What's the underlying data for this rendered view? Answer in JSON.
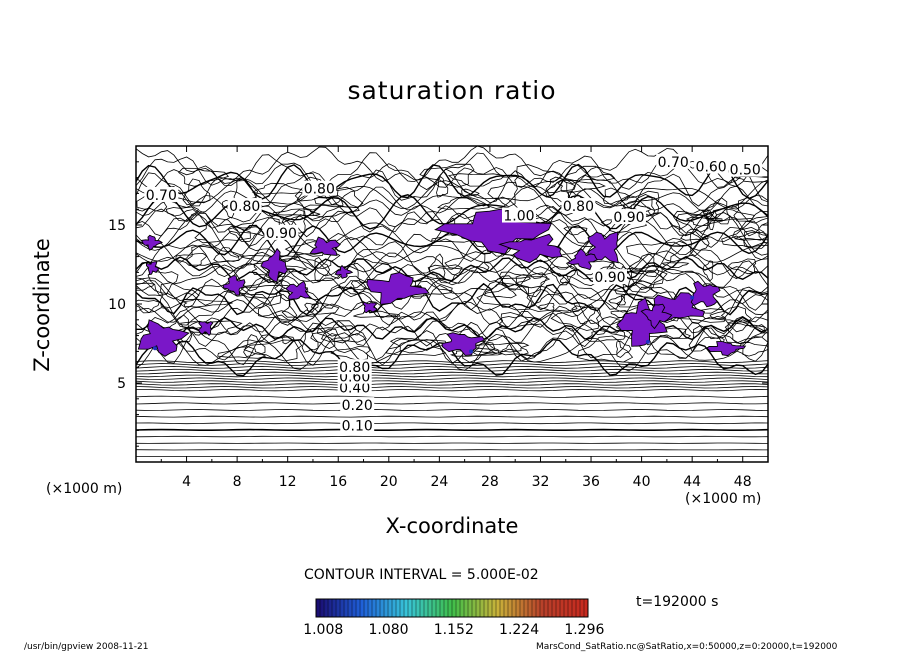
{
  "chart_data": {
    "type": "contour",
    "title": "saturation ratio",
    "xlabel": "X-coordinate",
    "ylabel": "Z-coordinate",
    "x_unit_left": "(×1000 m)",
    "x_unit_right": "(×1000 m)",
    "xlim": [
      0,
      50
    ],
    "ylim": [
      0,
      20
    ],
    "xticks": [
      "4",
      "8",
      "12",
      "16",
      "20",
      "24",
      "28",
      "32",
      "36",
      "40",
      "44",
      "48"
    ],
    "xtick_values": [
      4,
      8,
      12,
      16,
      20,
      24,
      28,
      32,
      36,
      40,
      44,
      48
    ],
    "yticks": [
      "5",
      "10",
      "15"
    ],
    "ytick_values": [
      5,
      10,
      15
    ],
    "contour_interval": "CONTOUR INTERVAL = 5.000E-02",
    "contour_labels": [
      {
        "text": "0.10",
        "x": 17.5,
        "z": 2.3
      },
      {
        "text": "0.20",
        "x": 17.5,
        "z": 3.6
      },
      {
        "text": "0.40",
        "x": 17.3,
        "z": 4.7
      },
      {
        "text": "0.60",
        "x": 17.3,
        "z": 5.4
      },
      {
        "text": "0.80",
        "x": 17.3,
        "z": 6.0
      },
      {
        "text": "0.70",
        "x": 2.0,
        "z": 16.9
      },
      {
        "text": "0.80",
        "x": 8.6,
        "z": 16.2
      },
      {
        "text": "0.80",
        "x": 14.5,
        "z": 17.3
      },
      {
        "text": "0.90",
        "x": 11.5,
        "z": 14.5
      },
      {
        "text": "1.00",
        "x": 30.3,
        "z": 15.6
      },
      {
        "text": "0.80",
        "x": 35.0,
        "z": 16.2
      },
      {
        "text": "0.90",
        "x": 39.0,
        "z": 15.5
      },
      {
        "text": "0.90",
        "x": 37.5,
        "z": 11.7
      },
      {
        "text": "0.70",
        "x": 42.5,
        "z": 19.0
      },
      {
        "text": "0.60",
        "x": 45.5,
        "z": 18.7
      },
      {
        "text": "0.50",
        "x": 48.2,
        "z": 18.5
      }
    ],
    "colorbar": {
      "ticks": [
        "1.008",
        "1.080",
        "1.152",
        "1.224",
        "1.296"
      ],
      "tick_values": [
        1.008,
        1.08,
        1.152,
        1.224,
        1.296
      ],
      "range": [
        1.0,
        1.3
      ],
      "colormap": [
        "#1a0a6e",
        "#1f5fd8",
        "#38c4d8",
        "#3fbf4a",
        "#c9b23a",
        "#b8402a",
        "#c8281e"
      ]
    },
    "fill_color": "#7a17c8",
    "time_label": "t=192000 s"
  },
  "footer": {
    "left": "/usr/bin/gpview   2008-11-21",
    "right": "MarsCond_SatRatio.nc@SatRatio,x=0:50000,z=0:20000,t=192000"
  }
}
